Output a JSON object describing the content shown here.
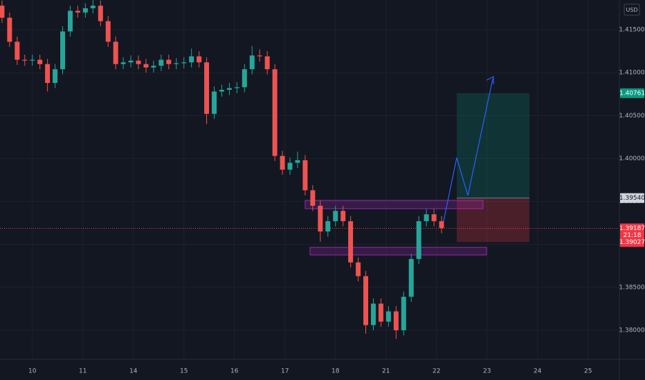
{
  "chart_data": {
    "type": "candlestick",
    "currency": "USD",
    "up_color": "#26a69a",
    "down_color": "#ef5350",
    "grid": true,
    "xlim": [
      -0.64,
      11.62
    ],
    "xticks": [
      {
        "value": 0,
        "label": "10"
      },
      {
        "value": 1,
        "label": "11"
      },
      {
        "value": 2,
        "label": "14"
      },
      {
        "value": 3,
        "label": "15"
      },
      {
        "value": 4,
        "label": "16"
      },
      {
        "value": 5,
        "label": "17"
      },
      {
        "value": 6,
        "label": "18"
      },
      {
        "value": 7,
        "label": "21"
      },
      {
        "value": 8,
        "label": "22"
      },
      {
        "value": 9,
        "label": "23"
      },
      {
        "value": 10,
        "label": "24"
      },
      {
        "value": 11,
        "label": "25"
      }
    ],
    "ylim": [
      1.37662,
      1.41846
    ],
    "yticks": [
      {
        "value": 1.415,
        "label": "1.41500"
      },
      {
        "value": 1.41,
        "label": "1.41000"
      },
      {
        "value": 1.405,
        "label": "1.40500"
      },
      {
        "value": 1.4,
        "label": "1.40000"
      },
      {
        "value": 1.395,
        "label": "1.39500"
      },
      {
        "value": 1.39,
        "label": "1.39000"
      },
      {
        "value": 1.385,
        "label": "1.38500"
      },
      {
        "value": 1.38,
        "label": "1.38000"
      }
    ],
    "x": [
      -0.6,
      -0.45,
      -0.3,
      -0.15,
      0,
      0.15,
      0.3,
      0.45,
      0.6,
      0.75,
      0.9,
      1.05,
      1.2,
      1.35,
      1.5,
      1.65,
      1.8,
      1.95,
      2.1,
      2.25,
      2.4,
      2.55,
      2.7,
      2.85,
      3,
      3.15,
      3.3,
      3.45,
      3.6,
      3.75,
      3.9,
      4.05,
      4.2,
      4.35,
      4.5,
      4.65,
      4.8,
      4.95,
      5.1,
      5.25,
      5.4,
      5.55,
      5.7,
      5.85,
      6,
      6.15,
      6.3,
      6.45,
      6.6,
      6.75,
      6.9,
      7.05,
      7.2,
      7.35,
      7.5,
      7.65,
      7.8,
      7.95,
      8.1
    ],
    "ohlc": [
      [
        1.4178,
        1.4184,
        1.4158,
        1.4164
      ],
      [
        1.4164,
        1.417,
        1.413,
        1.4136
      ],
      [
        1.4136,
        1.4142,
        1.4109,
        1.4115
      ],
      [
        1.4115,
        1.4121,
        1.4108,
        1.4114
      ],
      [
        1.4114,
        1.4121,
        1.4108,
        1.4115
      ],
      [
        1.4115,
        1.4121,
        1.4104,
        1.411
      ],
      [
        1.411,
        1.4116,
        1.4078,
        1.4088
      ],
      [
        1.4088,
        1.411,
        1.4082,
        1.4104
      ],
      [
        1.4104,
        1.4154,
        1.4098,
        1.4148
      ],
      [
        1.4148,
        1.4178,
        1.4142,
        1.4172
      ],
      [
        1.4172,
        1.4178,
        1.4164,
        1.417
      ],
      [
        1.417,
        1.4181,
        1.4164,
        1.4175
      ],
      [
        1.4175,
        1.4185,
        1.4169,
        1.4178
      ],
      [
        1.4178,
        1.4184,
        1.4154,
        1.416
      ],
      [
        1.416,
        1.4166,
        1.413,
        1.4136
      ],
      [
        1.4136,
        1.4142,
        1.4104,
        1.411
      ],
      [
        1.411,
        1.4118,
        1.4104,
        1.4112
      ],
      [
        1.4112,
        1.412,
        1.4106,
        1.4114
      ],
      [
        1.4114,
        1.412,
        1.4104,
        1.411
      ],
      [
        1.411,
        1.4116,
        1.41,
        1.4106
      ],
      [
        1.4106,
        1.4114,
        1.41,
        1.4108
      ],
      [
        1.4108,
        1.4121,
        1.4102,
        1.4115
      ],
      [
        1.4115,
        1.4121,
        1.4104,
        1.411
      ],
      [
        1.411,
        1.4117,
        1.4104,
        1.4111
      ],
      [
        1.4111,
        1.4118,
        1.4105,
        1.4112
      ],
      [
        1.4112,
        1.4128,
        1.4106,
        1.4119
      ],
      [
        1.4119,
        1.4125,
        1.4106,
        1.4112
      ],
      [
        1.4112,
        1.4118,
        1.404,
        1.4052
      ],
      [
        1.4052,
        1.4084,
        1.4046,
        1.4078
      ],
      [
        1.4078,
        1.4086,
        1.4072,
        1.408
      ],
      [
        1.408,
        1.4088,
        1.4074,
        1.4082
      ],
      [
        1.4082,
        1.4089,
        1.4076,
        1.4083
      ],
      [
        1.4083,
        1.411,
        1.4077,
        1.4104
      ],
      [
        1.4104,
        1.4131,
        1.4098,
        1.412
      ],
      [
        1.412,
        1.4127,
        1.4113,
        1.4119
      ],
      [
        1.4119,
        1.4125,
        1.4098,
        1.4104
      ],
      [
        1.4104,
        1.411,
        1.3997,
        1.4003
      ],
      [
        1.4003,
        1.4009,
        1.3981,
        1.3987
      ],
      [
        1.3987,
        1.4001,
        1.3981,
        1.3995
      ],
      [
        1.3995,
        1.4008,
        1.3989,
        1.3998
      ],
      [
        1.3998,
        1.4004,
        1.3957,
        1.3963
      ],
      [
        1.3963,
        1.3969,
        1.3939,
        1.3945
      ],
      [
        1.3945,
        1.3951,
        1.3903,
        1.3915
      ],
      [
        1.3915,
        1.3933,
        1.3909,
        1.3927
      ],
      [
        1.3927,
        1.3945,
        1.3921,
        1.3939
      ],
      [
        1.3939,
        1.3945,
        1.3921,
        1.3927
      ],
      [
        1.3927,
        1.3933,
        1.3873,
        1.3879
      ],
      [
        1.3879,
        1.3885,
        1.3857,
        1.3863
      ],
      [
        1.3863,
        1.3869,
        1.3796,
        1.3806
      ],
      [
        1.3806,
        1.3837,
        1.38,
        1.3831
      ],
      [
        1.3831,
        1.3837,
        1.3804,
        1.381
      ],
      [
        1.381,
        1.3828,
        1.3804,
        1.3822
      ],
      [
        1.3822,
        1.3828,
        1.379,
        1.38
      ],
      [
        1.38,
        1.3845,
        1.3794,
        1.3839
      ],
      [
        1.3839,
        1.3889,
        1.3833,
        1.3883
      ],
      [
        1.3883,
        1.3933,
        1.3877,
        1.3927
      ],
      [
        1.3927,
        1.3941,
        1.3921,
        1.3935
      ],
      [
        1.3935,
        1.3941,
        1.3921,
        1.3927
      ],
      [
        1.3927,
        1.3933,
        1.3913,
        1.3919
      ]
    ],
    "price_labels": [
      {
        "value": 1.40761,
        "color": "#089981"
      },
      {
        "value": 1.3954,
        "label": "1.39540",
        "color": "#d1d4dc"
      },
      {
        "value": 1.39187,
        "color": "#f23645"
      },
      {
        "value": 1.39027,
        "color": "#f23645"
      }
    ],
    "countdown": "21:18"
  }
}
